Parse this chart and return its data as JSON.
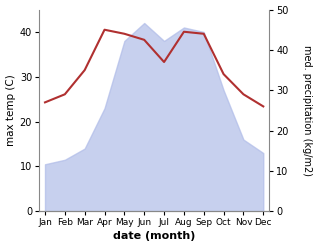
{
  "months": [
    "Jan",
    "Feb",
    "Mar",
    "Apr",
    "May",
    "Jun",
    "Jul",
    "Aug",
    "Sep",
    "Oct",
    "Nov",
    "Dec"
  ],
  "max_temp": [
    10.5,
    11.5,
    14.0,
    23.0,
    38.0,
    42.0,
    38.0,
    41.0,
    40.0,
    27.0,
    16.0,
    13.0
  ],
  "precipitation": [
    27.0,
    29.0,
    35.0,
    45.0,
    44.0,
    42.5,
    37.0,
    44.5,
    44.0,
    34.0,
    29.0,
    26.0
  ],
  "fill_color": "#b0bce8",
  "fill_alpha": 0.7,
  "line_color": "#b03030",
  "temp_ylim": [
    0,
    45
  ],
  "precip_ylim": [
    0,
    50
  ],
  "temp_yticks": [
    0,
    10,
    20,
    30,
    40
  ],
  "precip_yticks": [
    0,
    10,
    20,
    30,
    40,
    50
  ],
  "xlabel": "date (month)",
  "ylabel_left": "max temp (C)",
  "ylabel_right": "med. precipitation (kg/m2)",
  "background_color": "#ffffff"
}
